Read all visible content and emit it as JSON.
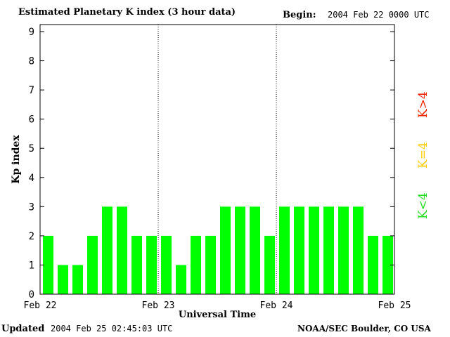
{
  "header": {
    "title": "Estimated Planetary K index (3 hour data)",
    "begin_label": "Begin:",
    "begin_value": "2004 Feb 22 0000 UTC"
  },
  "footer": {
    "updated_label": "Updated",
    "updated_value": "2004 Feb 25 02:45:03 UTC",
    "org": "NOAA/SEC Boulder, CO USA"
  },
  "legend": [
    {
      "label": "K<4",
      "color": "#22dd22"
    },
    {
      "label": "K=4",
      "color": "#ffcc00"
    },
    {
      "label": "K>4",
      "color": "#ee2200"
    }
  ],
  "chart_data": {
    "type": "bar",
    "title": "Estimated Planetary K index (3 hour data)",
    "xlabel": "Universal Time",
    "ylabel": "Kp index",
    "ylim": [
      0,
      9
    ],
    "yticks": [
      0,
      1,
      2,
      3,
      4,
      5,
      6,
      7,
      8,
      9
    ],
    "xtick_labels": [
      "Feb 22",
      "Feb 23",
      "Feb 24",
      "Feb 25"
    ],
    "bar_color": "#00ff00",
    "values": [
      2,
      1,
      1,
      2,
      3,
      3,
      2,
      2,
      2,
      1,
      2,
      2,
      3,
      3,
      3,
      2,
      3,
      3,
      3,
      3,
      3,
      3,
      2,
      2
    ]
  }
}
